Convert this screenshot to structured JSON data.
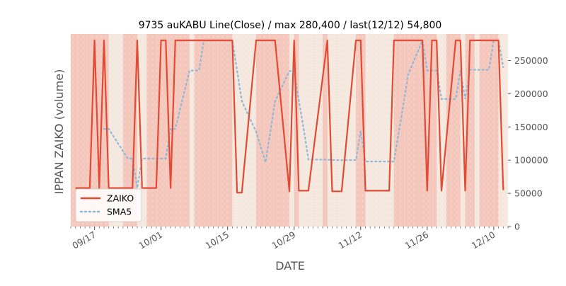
{
  "chart_data": {
    "type": "line",
    "title": "9735 auKABU Line(Close) / max 280,400 / last(12/12) 54,800",
    "xlabel": "DATE",
    "ylabel": "IPPAN ZAIKO (volume)",
    "ylim": [
      0,
      290000
    ],
    "xlim": [
      "2019-09-12",
      "2019-12-13"
    ],
    "yticks": [
      0,
      50000,
      100000,
      150000,
      200000,
      250000
    ],
    "ytick_labels": [
      "0",
      "50000",
      "100000",
      "150000",
      "200000",
      "250000"
    ],
    "xticks": [
      "2019-09-17",
      "2019-10-01",
      "2019-10-15",
      "2019-10-29",
      "2019-11-12",
      "2019-11-26",
      "2019-12-10"
    ],
    "xtick_labels": [
      "09/17",
      "10/01",
      "10/15",
      "10/29",
      "11/12",
      "11/26",
      "12/10"
    ],
    "legend_position": "lower-left",
    "grid": false,
    "colors": {
      "zaiko": "#e24a33",
      "sma5": "#8eb8d9",
      "high_band": "#f5c8bd",
      "low_band": "#f4e8df"
    },
    "series": [
      {
        "name": "ZAIKO",
        "x": [
          "2019-09-13",
          "2019-09-16",
          "2019-09-17",
          "2019-09-18",
          "2019-09-19",
          "2019-09-20",
          "2019-09-24",
          "2019-09-25",
          "2019-09-26",
          "2019-09-27",
          "2019-09-30",
          "2019-10-01",
          "2019-10-02",
          "2019-10-03",
          "2019-10-04",
          "2019-10-07",
          "2019-10-08",
          "2019-10-09",
          "2019-10-10",
          "2019-10-11",
          "2019-10-15",
          "2019-10-16",
          "2019-10-17",
          "2019-10-18",
          "2019-10-21",
          "2019-10-23",
          "2019-10-24",
          "2019-10-25",
          "2019-10-28",
          "2019-10-29",
          "2019-10-30",
          "2019-10-31",
          "2019-11-01",
          "2019-11-05",
          "2019-11-06",
          "2019-11-07",
          "2019-11-08",
          "2019-11-11",
          "2019-11-12",
          "2019-11-13",
          "2019-11-14",
          "2019-11-15",
          "2019-11-18",
          "2019-11-19",
          "2019-11-20",
          "2019-11-21",
          "2019-11-22",
          "2019-11-25",
          "2019-11-26",
          "2019-11-27",
          "2019-11-28",
          "2019-11-29",
          "2019-12-02",
          "2019-12-03",
          "2019-12-04",
          "2019-12-05",
          "2019-12-06",
          "2019-12-09",
          "2019-12-10",
          "2019-12-11",
          "2019-12-12"
        ],
        "values": [
          58000,
          58000,
          280400,
          58000,
          280400,
          58000,
          58000,
          58000,
          280400,
          58000,
          58000,
          280400,
          280400,
          58000,
          280400,
          280400,
          280400,
          280400,
          280400,
          280400,
          280400,
          280400,
          51000,
          51000,
          280400,
          280400,
          280400,
          280400,
          53000,
          280400,
          54000,
          54000,
          54000,
          280400,
          53000,
          53000,
          53000,
          280400,
          280400,
          54000,
          54000,
          54000,
          54000,
          280400,
          280400,
          280400,
          280400,
          280400,
          54000,
          280400,
          280400,
          54000,
          280400,
          280400,
          54000,
          280400,
          280400,
          280400,
          280400,
          280400,
          54800
        ]
      },
      {
        "name": "SMA5",
        "x": [
          "2019-09-19",
          "2019-09-20",
          "2019-09-24",
          "2019-09-25",
          "2019-09-26",
          "2019-09-27",
          "2019-09-30",
          "2019-10-01",
          "2019-10-02",
          "2019-10-03",
          "2019-10-04",
          "2019-10-07",
          "2019-10-08",
          "2019-10-09",
          "2019-10-10",
          "2019-10-11",
          "2019-10-15",
          "2019-10-16",
          "2019-10-17",
          "2019-10-18",
          "2019-10-21",
          "2019-10-23",
          "2019-10-24",
          "2019-10-25",
          "2019-10-28",
          "2019-10-29",
          "2019-10-30",
          "2019-10-31",
          "2019-11-01",
          "2019-11-05",
          "2019-11-06",
          "2019-11-07",
          "2019-11-08",
          "2019-11-11",
          "2019-11-12",
          "2019-11-13",
          "2019-11-14",
          "2019-11-15",
          "2019-11-18",
          "2019-11-19",
          "2019-11-20",
          "2019-11-21",
          "2019-11-22",
          "2019-11-25",
          "2019-11-26",
          "2019-11-27",
          "2019-11-28",
          "2019-11-29",
          "2019-12-02",
          "2019-12-03",
          "2019-12-04",
          "2019-12-05",
          "2019-12-06",
          "2019-12-09",
          "2019-12-10",
          "2019-12-11",
          "2019-12-12"
        ],
        "values": [
          147000,
          147000,
          102400,
          102400,
          58000,
          102400,
          102400,
          102400,
          102400,
          147000,
          147000,
          235000,
          235000,
          235000,
          280400,
          280400,
          280400,
          280400,
          234600,
          188800,
          143000,
          96800,
          143000,
          188800,
          234200,
          234200,
          190000,
          147000,
          101000,
          100800,
          100000,
          100000,
          100000,
          100000,
          144000,
          98000,
          98000,
          98000,
          98000,
          98000,
          141000,
          184000,
          229000,
          280400,
          235000,
          235000,
          235000,
          192000,
          192000,
          235000,
          192000,
          236000,
          236000,
          236000,
          280400,
          280400,
          240000
        ]
      }
    ],
    "shaded_bands": {
      "high": [
        [
          "2019-09-12",
          "2019-09-20"
        ],
        [
          "2019-09-23",
          "2019-09-26"
        ],
        [
          "2019-09-28",
          "2019-10-07"
        ],
        [
          "2019-10-08",
          "2019-10-16"
        ],
        [
          "2019-10-21",
          "2019-10-28"
        ],
        [
          "2019-10-29",
          "2019-10-30"
        ],
        [
          "2019-11-04",
          "2019-11-05"
        ],
        [
          "2019-11-11",
          "2019-11-13"
        ],
        [
          "2019-11-19",
          "2019-11-28"
        ],
        [
          "2019-11-30",
          "2019-12-03"
        ],
        [
          "2019-12-04",
          "2019-12-06"
        ],
        [
          "2019-12-07",
          "2019-12-11"
        ]
      ],
      "low": [
        [
          "2019-09-20",
          "2019-09-23"
        ],
        [
          "2019-09-26",
          "2019-09-28"
        ],
        [
          "2019-10-07",
          "2019-10-08"
        ],
        [
          "2019-10-16",
          "2019-10-21"
        ],
        [
          "2019-10-28",
          "2019-10-29"
        ],
        [
          "2019-10-30",
          "2019-11-04"
        ],
        [
          "2019-11-05",
          "2019-11-11"
        ],
        [
          "2019-11-13",
          "2019-11-19"
        ],
        [
          "2019-11-28",
          "2019-11-30"
        ],
        [
          "2019-12-03",
          "2019-12-04"
        ],
        [
          "2019-12-06",
          "2019-12-07"
        ],
        [
          "2019-12-11",
          "2019-12-13"
        ]
      ]
    }
  }
}
